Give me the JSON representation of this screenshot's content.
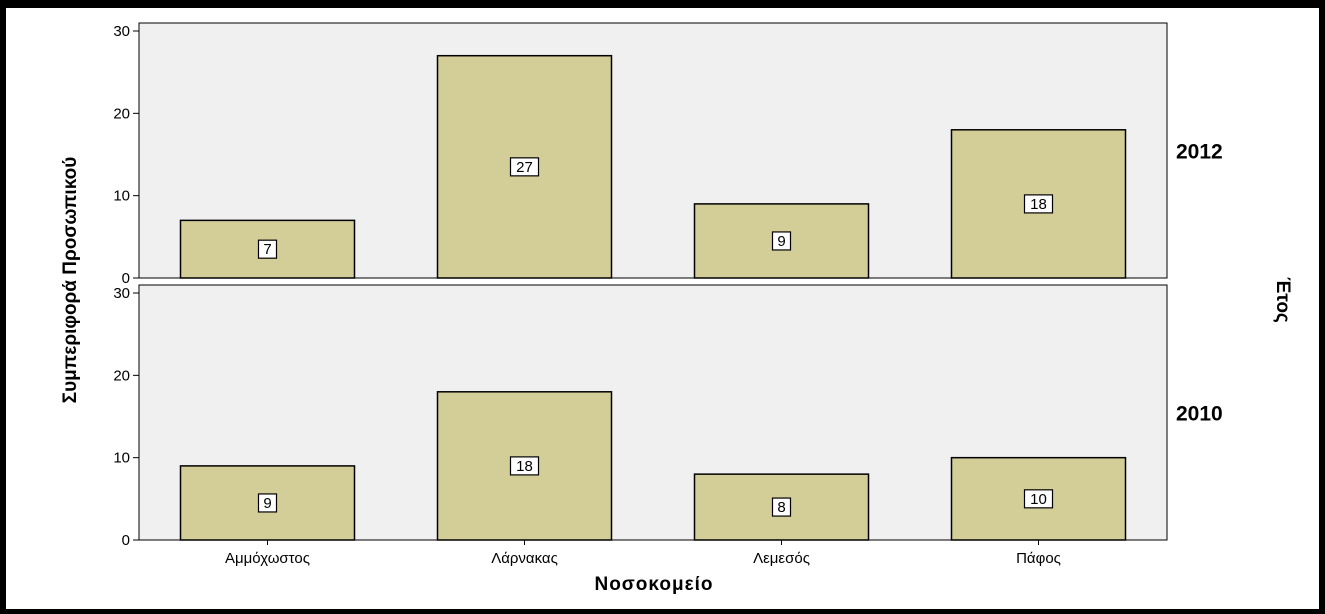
{
  "chart_data": {
    "type": "bar",
    "xlabel": "Νοσοκομείο",
    "ylabel": "Συμπεριφορά Προσωπικού",
    "row_axis_label": "Έτος",
    "categories": [
      "Αμμόχωστος",
      "Λάρνακας",
      "Λεμεσός",
      "Πάφος"
    ],
    "ylim": [
      0,
      30
    ],
    "yticks": [
      0,
      10,
      20,
      30
    ],
    "panels": [
      {
        "row_label": "2012",
        "values": [
          7,
          27,
          9,
          18
        ]
      },
      {
        "row_label": "2010",
        "values": [
          9,
          18,
          8,
          10
        ]
      }
    ],
    "data_labels": true,
    "grid": false,
    "colors": {
      "bar_fill": "#d3cd98",
      "panel_background": "#f0f0f0",
      "bar_stroke": "#000000"
    }
  }
}
